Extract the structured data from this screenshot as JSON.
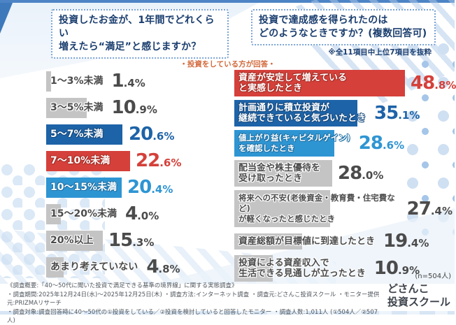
{
  "colors": {
    "navy_bar": "#1d63a8",
    "red_bar": "#d5403a",
    "sky_bar": "#2e95d3",
    "gray_bar": "#c4c4c4",
    "title_navy": "#1b3e6f",
    "accent_orange": "#d2693b",
    "top_line_blue": "#4d84c5"
  },
  "notes": {
    "respondent": "・投資をしている方が回答・",
    "excerpt": "※全11項目中上位7項目を抜粋",
    "sample": "(n=504人)"
  },
  "chart_data": [
    {
      "type": "bar",
      "orientation": "horizontal",
      "title": "投資したお金が、1年間でどれくらい\n増えたら“満足”と感じますか？",
      "unit": "%",
      "categories": [
        "1〜3%未満",
        "3〜5%未満",
        "5〜7%未満",
        "7〜10%未満",
        "10〜15%未満",
        "15〜20%未満",
        "20%以上",
        "あまり考えていない"
      ],
      "values": [
        1.4,
        10.9,
        20.6,
        22.6,
        20.4,
        4.0,
        15.3,
        4.8
      ],
      "value_int": [
        "1",
        "10",
        "20",
        "22",
        "20",
        "4",
        "15",
        "4"
      ],
      "value_frac": [
        ".4%",
        ".9%",
        ".6%",
        ".6%",
        ".4%",
        ".0%",
        ".3%",
        ".8%"
      ],
      "bar_colors": [
        "#c4c4c4",
        "#c4c4c4",
        "#1d63a8",
        "#d5403a",
        "#2e95d3",
        "#c4c4c4",
        "#c4c4c4",
        "#c4c4c4"
      ]
    },
    {
      "type": "bar",
      "orientation": "horizontal",
      "title": "投資で達成感を得られたのは\nどのようなときですか？(複数回答可)",
      "note": "※全11項目中上位7項目を抜粋",
      "unit": "%",
      "categories": [
        "資産が安定して増えている\nと実感したとき",
        "計画通りに積立投資が\n継続できていると気づいたとき",
        "値上がり益(キャピタルゲイン)\nを確認したとき",
        "配当金や株主優待を\n受け取ったとき",
        "将来への不安(老後資金・教育費・住宅費など)\nが軽くなったと感じたとき",
        "資産総額が目標値に到達したとき",
        "投資による資産収入で\n生活できる見通しが立ったとき"
      ],
      "values": [
        48.8,
        35.1,
        28.6,
        28.0,
        27.4,
        19.4,
        10.9
      ],
      "value_int": [
        "48",
        "35",
        "28",
        "28",
        "27",
        "19",
        "10"
      ],
      "value_frac": [
        ".8%",
        ".1%",
        ".6%",
        ".0%",
        ".4%",
        ".4%",
        ".9%"
      ],
      "bar_colors": [
        "#d5403a",
        "#1d63a8",
        "#2e95d3",
        "#c4c4c4",
        "#c4c4c4",
        "#c4c4c4",
        "#c4c4c4"
      ],
      "sample_note": "(n=504人)"
    }
  ],
  "footer": {
    "line1": "《調査概要:「40〜50代に聞いた投資で満足できる基準の境界線」に関する実態調査》",
    "line2": "・調査期間:2025年12月24日(水)〜2025年12月25日(木) ・調査方法:インターネット調査 ・調査元:どさんこ投資スクール ・モニター提供元:PRIZMAリサーチ",
    "line3": "・調査対象:調査回答時に40〜50代の①投資をしている／②投資を検討していると回答したモニター ・調査人数:1,011人 (①504人／②507人)",
    "logo": "どさんこ\n投資スクール"
  }
}
